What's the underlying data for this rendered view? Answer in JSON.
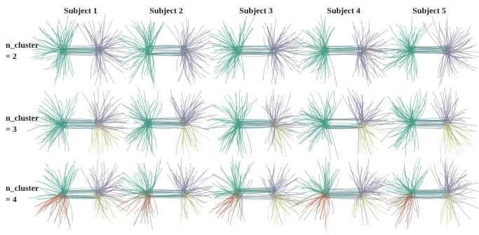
{
  "columns": [
    "Subject 1",
    "Subject 2",
    "Subject 3",
    "Subject 4",
    "Subject 5"
  ],
  "rows": [
    [
      "n_cluster",
      "= 2"
    ],
    [
      "n_cluster",
      "= 3"
    ],
    [
      "n_cluster",
      "= 4"
    ]
  ]
}
